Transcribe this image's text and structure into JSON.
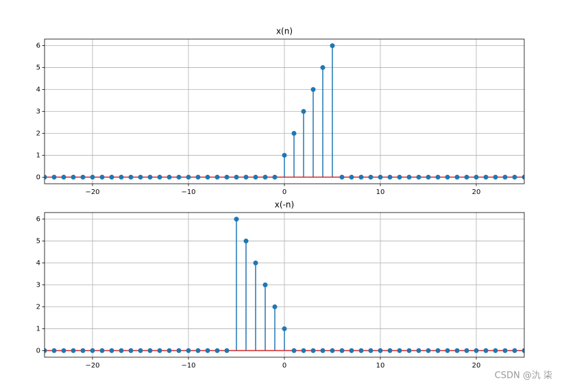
{
  "chart_data": [
    {
      "type": "stem",
      "title": "x(n)",
      "x": [
        -25,
        -24,
        -23,
        -22,
        -21,
        -20,
        -19,
        -18,
        -17,
        -16,
        -15,
        -14,
        -13,
        -12,
        -11,
        -10,
        -9,
        -8,
        -7,
        -6,
        -5,
        -4,
        -3,
        -2,
        -1,
        0,
        1,
        2,
        3,
        4,
        5,
        6,
        7,
        8,
        9,
        10,
        11,
        12,
        13,
        14,
        15,
        16,
        17,
        18,
        19,
        20,
        21,
        22,
        23,
        24,
        25
      ],
      "values": [
        0,
        0,
        0,
        0,
        0,
        0,
        0,
        0,
        0,
        0,
        0,
        0,
        0,
        0,
        0,
        0,
        0,
        0,
        0,
        0,
        0,
        0,
        0,
        0,
        0,
        1,
        2,
        3,
        4,
        5,
        6,
        0,
        0,
        0,
        0,
        0,
        0,
        0,
        0,
        0,
        0,
        0,
        0,
        0,
        0,
        0,
        0,
        0,
        0,
        0,
        0
      ],
      "color": "#1f77b4",
      "baseline_color": "#d62728",
      "xlim": [
        -25,
        25
      ],
      "xticks": [
        {
          "value": -20,
          "label": "−20"
        },
        {
          "value": -10,
          "label": "−10"
        },
        0,
        10,
        20
      ],
      "ylim": [
        -0.3,
        6.3
      ],
      "yticks": [
        0,
        1,
        2,
        3,
        4,
        5,
        6
      ],
      "grid": true
    },
    {
      "type": "stem",
      "title": "x(-n)",
      "x": [
        -25,
        -24,
        -23,
        -22,
        -21,
        -20,
        -19,
        -18,
        -17,
        -16,
        -15,
        -14,
        -13,
        -12,
        -11,
        -10,
        -9,
        -8,
        -7,
        -6,
        -5,
        -4,
        -3,
        -2,
        -1,
        0,
        1,
        2,
        3,
        4,
        5,
        6,
        7,
        8,
        9,
        10,
        11,
        12,
        13,
        14,
        15,
        16,
        17,
        18,
        19,
        20,
        21,
        22,
        23,
        24,
        25
      ],
      "values": [
        0,
        0,
        0,
        0,
        0,
        0,
        0,
        0,
        0,
        0,
        0,
        0,
        0,
        0,
        0,
        0,
        0,
        0,
        0,
        0,
        6,
        5,
        4,
        3,
        2,
        1,
        0,
        0,
        0,
        0,
        0,
        0,
        0,
        0,
        0,
        0,
        0,
        0,
        0,
        0,
        0,
        0,
        0,
        0,
        0,
        0,
        0,
        0,
        0,
        0,
        0
      ],
      "color": "#1f77b4",
      "baseline_color": "#d62728",
      "xlim": [
        -25,
        25
      ],
      "xticks": [
        {
          "value": -20,
          "label": "−20"
        },
        {
          "value": -10,
          "label": "−10"
        },
        0,
        10,
        20
      ],
      "ylim": [
        -0.3,
        6.3
      ],
      "yticks": [
        0,
        1,
        2,
        3,
        4,
        5,
        6
      ],
      "grid": true
    }
  ],
  "watermark": "CSDN @氿 柒"
}
